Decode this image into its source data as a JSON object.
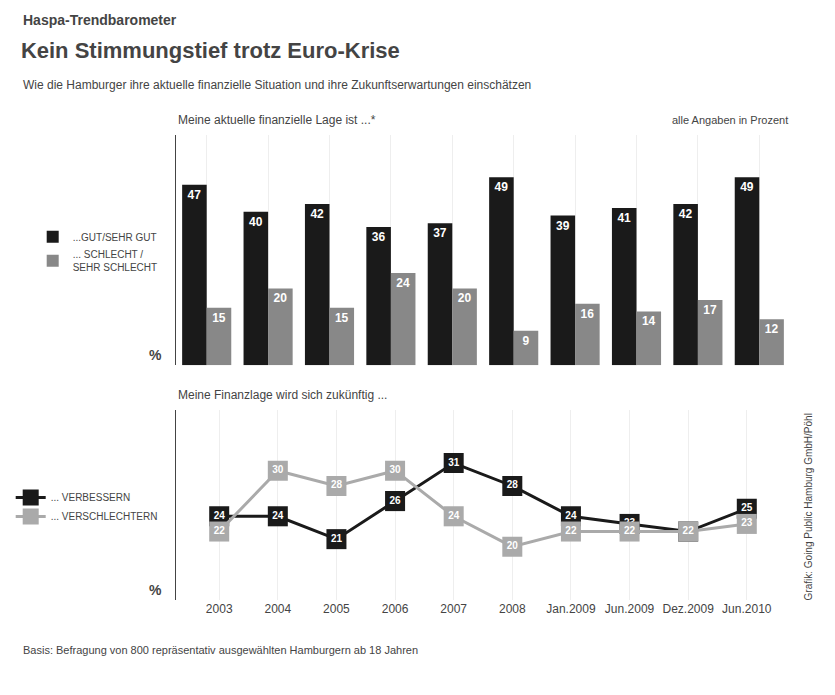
{
  "chart_data": [
    {
      "type": "bar",
      "title": "Kein Stimmungstief trotz Euro-Krise",
      "subtitle": "Wie die Hamburger ihre aktuelle finanzielle Situation und ihre Zukunftserwartungen einschätzen",
      "annotations": [
        "Haspa-Trendbarometer",
        "Meine aktuelle finanzielle Lage ist ...*",
        "alle Angaben in Prozent",
        "%"
      ],
      "categories": [
        "2003",
        "2004",
        "2005",
        "2006",
        "2007",
        "2008",
        "Jan.2009",
        "Jun.2009",
        "Dez.2009",
        "Jun.2010"
      ],
      "series": [
        {
          "name": "...GUT/SEHR GUT",
          "color": "#1a1a1a",
          "values": [
            47,
            40,
            42,
            36,
            37,
            49,
            39,
            41,
            42,
            49
          ]
        },
        {
          "name": "... SCHLECHT /\nSEHR SCHLECHT",
          "color": "#888888",
          "values": [
            15,
            20,
            15,
            24,
            20,
            9,
            16,
            14,
            17,
            12
          ]
        }
      ],
      "ylim": [
        0,
        60
      ],
      "data_labels": true,
      "tick_labels": false,
      "grid": true,
      "legend": "left"
    },
    {
      "type": "line",
      "annotations": [
        "Meine Finanzlage wird sich zukünftig ...",
        "%",
        "Basis: Befragung von 800 repräsentativ ausgewählten Hamburgern ab 18 Jahren",
        "Grafik: Going Public Hamburg GmbH/Pöhl"
      ],
      "categories": [
        "2003",
        "2004",
        "2005",
        "2006",
        "2007",
        "2008",
        "Jan.2009",
        "Jun.2009",
        "Dez.2009",
        "Jun.2010"
      ],
      "series": [
        {
          "name": "... VERBESSERN",
          "color": "#1a1a1a",
          "values": [
            24,
            24,
            21,
            26,
            31,
            28,
            24,
            23,
            22,
            25
          ]
        },
        {
          "name": "... VERSCHLECHTERN",
          "color": "#aaaaaa",
          "values": [
            22,
            30,
            28,
            30,
            24,
            20,
            22,
            22,
            22,
            23
          ]
        }
      ],
      "ylim": [
        13,
        38
      ],
      "marker": "square",
      "data_labels": true,
      "tick_labels": "x",
      "grid": true,
      "legend": "left"
    }
  ]
}
